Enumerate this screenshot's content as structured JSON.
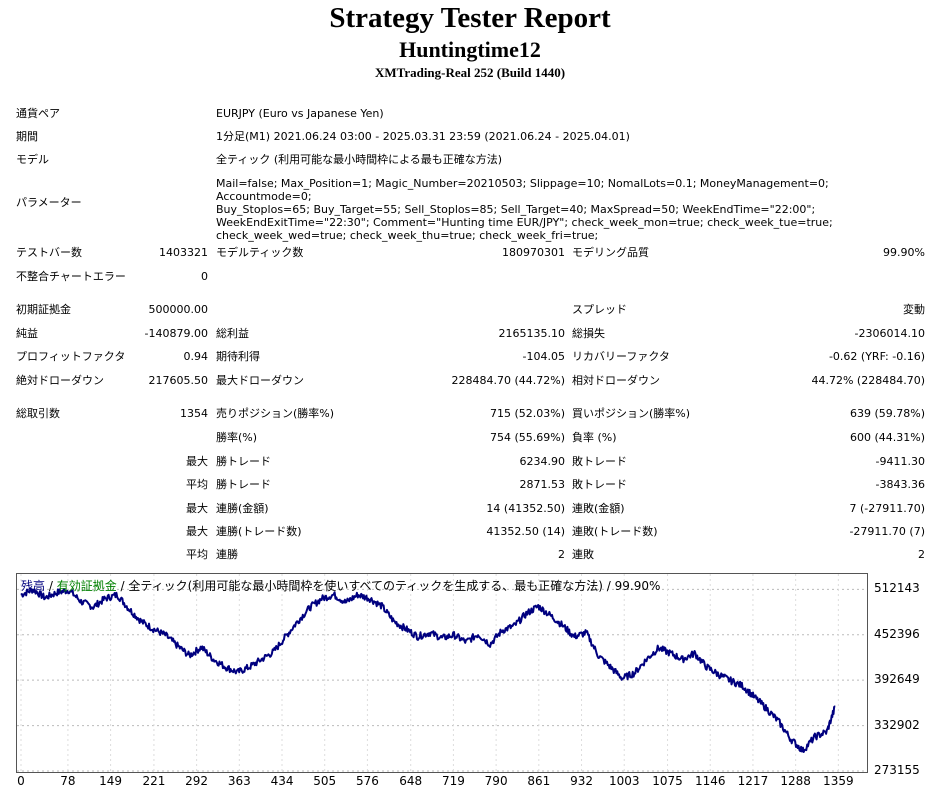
{
  "header": {
    "title": "Strategy Tester Report",
    "ea_name": "Huntingtime12",
    "account": "XMTrading-Real 252 (Build 1440)"
  },
  "info": {
    "symbol_label": "通貨ペア",
    "symbol_value": "EURJPY (Euro vs Japanese Yen)",
    "period_label": "期間",
    "period_value": "1分足(M1) 2021.06.24 03:00 - 2025.03.31 23:59 (2021.06.24 - 2025.04.01)",
    "model_label": "モデル",
    "model_value": "全ティック (利用可能な最小時間枠による最も正確な方法)",
    "params_label": "パラメーター",
    "params_lines": [
      "Mail=false; Max_Position=1; Magic_Number=20210503; Slippage=10; NomalLots=0.1; MoneyManagement=0; Accountmode=0;",
      "Buy_Stoplos=65; Buy_Target=55; Sell_Stoplos=85; Sell_Target=40; MaxSpread=50; WeekEndTime=\"22:00\";",
      "WeekEndExitTime=\"22:30\"; Comment=\"Hunting time EUR/JPY\"; check_week_mon=true; check_week_tue=true;",
      "check_week_wed=true; check_week_thu=true; check_week_fri=true;"
    ]
  },
  "stats": {
    "bars_label": "テストバー数",
    "bars_value": "1403321",
    "ticks_label": "モデルティック数",
    "ticks_value": "180970301",
    "quality_label": "モデリング品質",
    "quality_value": "99.90%",
    "mismatch_label": "不整合チャートエラー",
    "mismatch_value": "0",
    "deposit_label": "初期証拠金",
    "deposit_value": "500000.00",
    "spread_label": "スプレッド",
    "spread_value": "変動",
    "net_label": "純益",
    "net_value": "-140879.00",
    "gross_profit_label": "総利益",
    "gross_profit_value": "2165135.10",
    "gross_loss_label": "総損失",
    "gross_loss_value": "-2306014.10",
    "pf_label": "プロフィットファクタ",
    "pf_value": "0.94",
    "payoff_label": "期待利得",
    "payoff_value": "-104.05",
    "recovery_label": "リカバリーファクタ",
    "recovery_value": "-0.62 (YRF: -0.16)",
    "abs_dd_label": "絶対ドローダウン",
    "abs_dd_value": "217605.50",
    "max_dd_label": "最大ドローダウン",
    "max_dd_value": "228484.70 (44.72%)",
    "rel_dd_label": "相対ドローダウン",
    "rel_dd_value": "44.72% (228484.70)",
    "trades_label": "総取引数",
    "trades_value": "1354",
    "short_label": "売りポジション(勝率%)",
    "short_value": "715 (52.03%)",
    "long_label": "買いポジション(勝率%)",
    "long_value": "639 (59.78%)",
    "winrate_label": "勝率(%)",
    "winrate_value": "754 (55.69%)",
    "lossrate_label": "負率 (%)",
    "lossrate_value": "600 (44.31%)",
    "q_max": "最大",
    "q_avg": "平均",
    "largest_win_label": "勝トレード",
    "largest_win_value": "6234.90",
    "largest_loss_label": "敗トレード",
    "largest_loss_value": "-9411.30",
    "avg_win_label": "勝トレード",
    "avg_win_value": "2871.53",
    "avg_loss_label": "敗トレード",
    "avg_loss_value": "-3843.36",
    "consec_win_amt_label": "連勝(金額)",
    "consec_win_amt_value": "14 (41352.50)",
    "consec_loss_amt_label": "連敗(金額)",
    "consec_loss_amt_value": "7 (-27911.70)",
    "consec_win_cnt_label": "連勝(トレード数)",
    "consec_win_cnt_value": "41352.50 (14)",
    "consec_loss_cnt_label": "連敗(トレード数)",
    "consec_loss_cnt_value": "-27911.70 (7)",
    "avg_consec_win_label": "連勝",
    "avg_consec_win_value": "2",
    "avg_consec_loss_label": "連敗",
    "avg_consec_loss_value": "2"
  },
  "chart_data": {
    "type": "line",
    "legend_balance": "残高",
    "legend_sep": " / ",
    "legend_equity": "有効証拠金",
    "legend_rest": " / 全ティック(利用可能な最小時間枠を使いすべてのティックを生成する、最も正確な方法) / 99.90%",
    "color_balance": "#00007f",
    "color_equity": "#008000",
    "yticks": [
      "512143",
      "452396",
      "392649",
      "332902",
      "273155"
    ],
    "xticks": [
      "0",
      "78",
      "149",
      "221",
      "292",
      "363",
      "434",
      "505",
      "576",
      "648",
      "719",
      "790",
      "861",
      "932",
      "1003",
      "1075",
      "1146",
      "1217",
      "1288",
      "1359"
    ],
    "ylim": [
      273155,
      531000
    ],
    "xlim": [
      0,
      1400
    ],
    "grid": true,
    "series": [
      {
        "x": [
          0,
          20,
          40,
          60,
          80,
          100,
          120,
          140,
          160,
          180,
          200,
          220,
          240,
          260,
          280,
          300,
          320,
          340,
          360,
          380,
          400,
          420,
          440,
          460,
          480,
          500,
          520,
          540,
          560,
          580,
          600,
          620,
          640,
          660,
          680,
          700,
          720,
          740,
          760,
          780,
          800,
          820,
          840,
          860,
          880,
          900,
          920,
          940,
          960,
          980,
          1000,
          1020,
          1040,
          1060,
          1080,
          1100,
          1120,
          1140,
          1160,
          1180,
          1200,
          1220,
          1240,
          1260,
          1280,
          1300,
          1320,
          1340,
          1354
        ],
        "values": [
          505000,
          512000,
          501000,
          508000,
          511000,
          496000,
          489000,
          500000,
          505000,
          486000,
          470000,
          460000,
          452000,
          438000,
          425000,
          436000,
          420000,
          410000,
          403000,
          410000,
          420000,
          430000,
          450000,
          470000,
          488000,
          500000,
          505000,
          495000,
          505000,
          500000,
          490000,
          470000,
          460000,
          450000,
          455000,
          448000,
          452000,
          443000,
          453000,
          440000,
          458000,
          464000,
          480000,
          490000,
          478000,
          465000,
          450000,
          455000,
          425000,
          410000,
          395000,
          402000,
          420000,
          435000,
          428000,
          420000,
          428000,
          410000,
          400000,
          392000,
          385000,
          370000,
          355000,
          338000,
          315000,
          300000,
          318000,
          325000,
          358000
        ]
      }
    ]
  }
}
